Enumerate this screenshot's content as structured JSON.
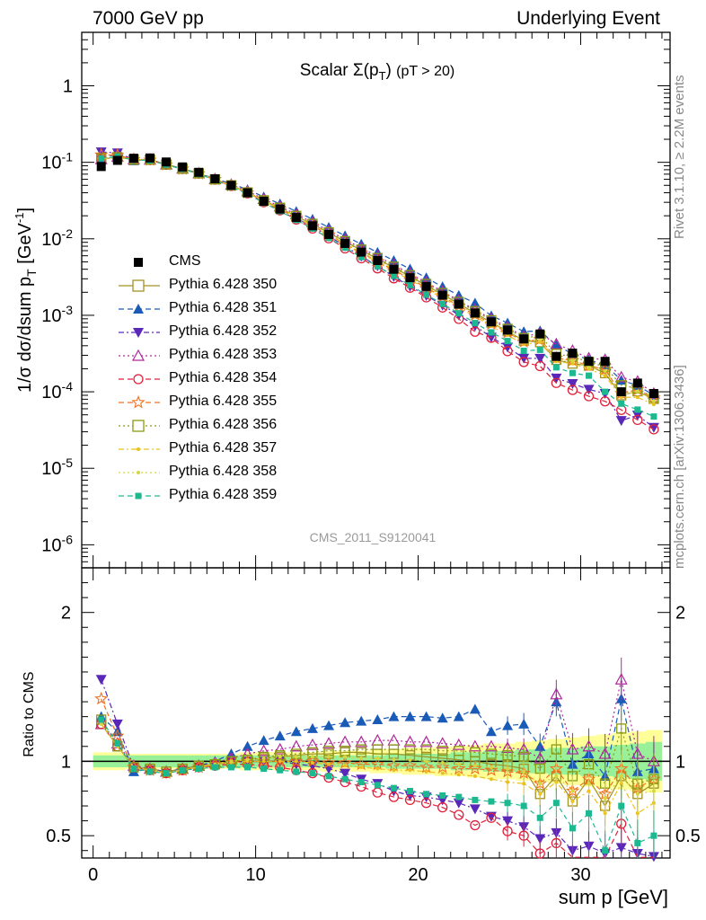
{
  "header": {
    "left": "7000 GeV pp",
    "right": "Underlying Event"
  },
  "side": {
    "rivet": "Rivet 3.1.10, ≥ 2.2M events",
    "mcplots": "mcplots.cern.ch [arXiv:1306.3436]"
  },
  "colors": {
    "CMS": "#000000",
    "p350": "#a09226",
    "p351": "#1a5bb8",
    "p352": "#5a28b8",
    "p353": "#b0279b",
    "p354": "#e0203a",
    "p355": "#f07020",
    "p356": "#8a9a12",
    "p357": "#e8c020",
    "p358": "#d6d640",
    "p359": "#1cb890",
    "band_green": "#98f098",
    "band_yellow": "#ffff99"
  },
  "legend": [
    {
      "label": "CMS",
      "key": "CMS",
      "marker": "filled-square",
      "dash": "none"
    },
    {
      "label": "Pythia 6.428 350",
      "key": "p350",
      "marker": "open-square",
      "dash": "solid"
    },
    {
      "label": "Pythia 6.428 351",
      "key": "p351",
      "marker": "filled-triangle-up",
      "dash": "dashed"
    },
    {
      "label": "Pythia 6.428 352",
      "key": "p352",
      "marker": "filled-triangle-down",
      "dash": "dashdot"
    },
    {
      "label": "Pythia 6.428 353",
      "key": "p353",
      "marker": "open-triangle-up",
      "dash": "dotted"
    },
    {
      "label": "Pythia 6.428 354",
      "key": "p354",
      "marker": "open-circle",
      "dash": "dashed"
    },
    {
      "label": "Pythia 6.428 355",
      "key": "p355",
      "marker": "open-star",
      "dash": "dashed"
    },
    {
      "label": "Pythia 6.428 356",
      "key": "p356",
      "marker": "open-square",
      "dash": "dotted"
    },
    {
      "label": "Pythia 6.428 357",
      "key": "p357",
      "marker": "small-dot",
      "dash": "dashdot"
    },
    {
      "label": "Pythia 6.428 358",
      "key": "p358",
      "marker": "small-dot",
      "dash": "dotted"
    },
    {
      "label": "Pythia 6.428 359",
      "key": "p359",
      "marker": "filled-square-small",
      "dash": "dashed"
    }
  ],
  "chart_data": {
    "type": "scatter",
    "title": "Scalar Σ(p_T) (pT > 20)",
    "watermark": "CMS_2011_S9120041",
    "xlabel": "sum p_T [GeV]",
    "ylabel": "1/σ dσ/dsum p_T [GeV^-1]",
    "ratio_ylabel": "Ratio to CMS",
    "xlim": [
      -0.7,
      35.5
    ],
    "ylim": [
      5e-07,
      5
    ],
    "y_log": true,
    "ratio_ylim": [
      0.35,
      2.3
    ],
    "x_ticks": [
      0,
      10,
      20,
      30
    ],
    "y_ticks": [
      "10^-6",
      "10^-5",
      "10^-4",
      "10^-3",
      "10^-2",
      "10^-1",
      "1"
    ],
    "ratio_ticks": [
      0.5,
      1,
      2
    ],
    "x": [
      0.5,
      1.5,
      2.5,
      3.5,
      4.5,
      5.5,
      6.5,
      7.5,
      8.5,
      9.5,
      10.5,
      11.5,
      12.5,
      13.5,
      14.5,
      15.5,
      16.5,
      17.5,
      18.5,
      19.5,
      20.5,
      21.5,
      22.5,
      23.5,
      24.5,
      25.5,
      26.5,
      27.5,
      28.5,
      29.5,
      30.5,
      31.5,
      32.5,
      33.5,
      34.5
    ],
    "cms": [
      0.088,
      0.106,
      0.113,
      0.114,
      0.101,
      0.087,
      0.074,
      0.061,
      0.05,
      0.04,
      0.031,
      0.0245,
      0.019,
      0.0148,
      0.0114,
      0.0087,
      0.0067,
      0.0052,
      0.004,
      0.0031,
      0.00238,
      0.00183,
      0.0014,
      0.00107,
      0.00082,
      0.00064,
      0.00049,
      0.00057,
      0.00029,
      0.00032,
      0.00025,
      0.00025,
      0.0001,
      0.00013,
      9.5e-05
    ],
    "series": [
      {
        "name": "Pythia 6.428 350",
        "ratio": [
          1.25,
          1.1,
          0.96,
          0.95,
          0.93,
          0.95,
          0.97,
          0.98,
          1.0,
          1.01,
          1.02,
          1.03,
          1.04,
          1.05,
          1.05,
          1.06,
          1.06,
          1.05,
          1.05,
          1.04,
          1.03,
          1.02,
          1.01,
          1.0,
          0.98,
          0.97,
          0.95,
          0.78,
          0.9,
          0.73,
          0.88,
          0.7,
          0.9,
          0.78,
          0.85
        ]
      },
      {
        "name": "Pythia 6.428 351",
        "ratio": [
          1.3,
          1.2,
          0.93,
          0.95,
          0.93,
          0.95,
          0.97,
          1.0,
          1.05,
          1.1,
          1.14,
          1.17,
          1.2,
          1.22,
          1.24,
          1.26,
          1.27,
          1.28,
          1.3,
          1.3,
          1.3,
          1.29,
          1.3,
          1.35,
          1.2,
          1.24,
          1.25,
          1.1,
          1.4,
          0.98,
          1.05,
          0.9,
          1.42,
          0.93,
          0.95
        ]
      },
      {
        "name": "Pythia 6.428 352",
        "ratio": [
          1.55,
          1.25,
          0.96,
          0.94,
          0.92,
          0.94,
          0.96,
          0.98,
          0.99,
          1.0,
          1.0,
          1.0,
          0.98,
          0.97,
          0.95,
          0.92,
          0.88,
          0.85,
          0.8,
          0.77,
          0.76,
          0.74,
          0.72,
          0.68,
          0.63,
          0.6,
          0.56,
          0.48,
          0.52,
          0.4,
          0.43,
          0.38,
          0.42,
          0.38,
          0.36
        ]
      },
      {
        "name": "Pythia 6.428 353",
        "ratio": [
          1.25,
          1.12,
          0.97,
          0.95,
          0.93,
          0.95,
          0.97,
          0.99,
          1.02,
          1.05,
          1.07,
          1.08,
          1.1,
          1.11,
          1.12,
          1.13,
          1.13,
          1.14,
          1.14,
          1.13,
          1.13,
          1.12,
          1.11,
          1.1,
          1.1,
          1.09,
          1.08,
          1.02,
          1.45,
          1.08,
          1.1,
          1.05,
          1.55,
          1.05,
          1.0
        ]
      },
      {
        "name": "Pythia 6.428 354",
        "ratio": [
          1.25,
          1.1,
          0.96,
          0.94,
          0.92,
          0.94,
          0.96,
          0.97,
          0.98,
          0.98,
          0.97,
          0.96,
          0.94,
          0.92,
          0.89,
          0.86,
          0.83,
          0.79,
          0.76,
          0.74,
          0.72,
          0.69,
          0.64,
          0.57,
          0.62,
          0.53,
          0.5,
          0.38,
          0.45,
          0.33,
          0.35,
          0.3,
          0.58,
          0.33,
          0.34
        ]
      },
      {
        "name": "Pythia 6.428 355",
        "ratio": [
          1.42,
          1.17,
          0.96,
          0.94,
          0.92,
          0.94,
          0.96,
          0.98,
          0.99,
          1.0,
          1.0,
          1.0,
          1.0,
          1.0,
          0.99,
          0.99,
          0.98,
          0.98,
          0.97,
          0.97,
          0.96,
          0.96,
          0.95,
          0.95,
          0.94,
          0.93,
          0.92,
          0.85,
          0.95,
          0.8,
          0.88,
          0.78,
          0.95,
          0.82,
          0.88
        ]
      },
      {
        "name": "Pythia 6.428 356",
        "ratio": [
          1.28,
          1.1,
          0.96,
          0.95,
          0.93,
          0.95,
          0.97,
          0.98,
          1.0,
          1.01,
          1.03,
          1.04,
          1.05,
          1.06,
          1.07,
          1.07,
          1.08,
          1.08,
          1.08,
          1.08,
          1.08,
          1.07,
          1.07,
          1.06,
          1.05,
          1.04,
          1.03,
          0.95,
          1.08,
          0.9,
          0.98,
          0.85,
          1.22,
          0.85,
          0.88
        ]
      },
      {
        "name": "Pythia 6.428 357",
        "ratio": [
          1.25,
          1.1,
          0.96,
          0.94,
          0.92,
          0.94,
          0.96,
          0.98,
          0.99,
          1.0,
          1.0,
          1.0,
          1.0,
          0.99,
          0.98,
          0.97,
          0.96,
          0.95,
          0.94,
          0.94,
          0.93,
          0.92,
          0.91,
          0.9,
          0.88,
          0.86,
          0.85,
          0.78,
          0.86,
          0.73,
          0.8,
          0.65,
          0.85,
          0.65,
          0.72
        ]
      },
      {
        "name": "Pythia 6.428 358",
        "ratio": [
          1.25,
          1.1,
          0.96,
          0.94,
          0.92,
          0.94,
          0.96,
          0.98,
          1.0,
          1.01,
          1.02,
          1.03,
          1.03,
          1.03,
          1.03,
          1.03,
          1.02,
          1.02,
          1.01,
          1.01,
          1.0,
          0.99,
          0.98,
          0.97,
          0.96,
          0.95,
          0.93,
          0.85,
          0.9,
          0.8,
          0.85,
          0.75,
          0.9,
          0.78,
          0.8
        ]
      },
      {
        "name": "Pythia 6.428 359",
        "ratio": [
          1.28,
          1.12,
          0.95,
          0.93,
          0.92,
          0.94,
          0.95,
          0.96,
          0.96,
          0.96,
          0.95,
          0.94,
          0.93,
          0.92,
          0.9,
          0.88,
          0.86,
          0.84,
          0.82,
          0.8,
          0.78,
          0.77,
          0.76,
          0.74,
          0.73,
          0.72,
          0.7,
          0.62,
          0.72,
          0.55,
          0.65,
          0.4,
          0.7,
          0.45,
          0.5
        ]
      }
    ],
    "band_green_halfwidth": [
      0.04,
      0.04,
      0.04,
      0.04,
      0.04,
      0.04,
      0.04,
      0.04,
      0.04,
      0.04,
      0.04,
      0.04,
      0.04,
      0.04,
      0.04,
      0.04,
      0.04,
      0.04,
      0.05,
      0.05,
      0.05,
      0.05,
      0.06,
      0.06,
      0.07,
      0.07,
      0.08,
      0.08,
      0.09,
      0.09,
      0.1,
      0.1,
      0.11,
      0.12,
      0.13
    ],
    "band_yellow_halfwidth": [
      0.06,
      0.06,
      0.05,
      0.05,
      0.05,
      0.05,
      0.05,
      0.05,
      0.05,
      0.06,
      0.06,
      0.06,
      0.06,
      0.06,
      0.07,
      0.07,
      0.07,
      0.08,
      0.08,
      0.09,
      0.09,
      0.1,
      0.1,
      0.11,
      0.12,
      0.12,
      0.13,
      0.14,
      0.15,
      0.16,
      0.17,
      0.18,
      0.19,
      0.2,
      0.21
    ]
  }
}
